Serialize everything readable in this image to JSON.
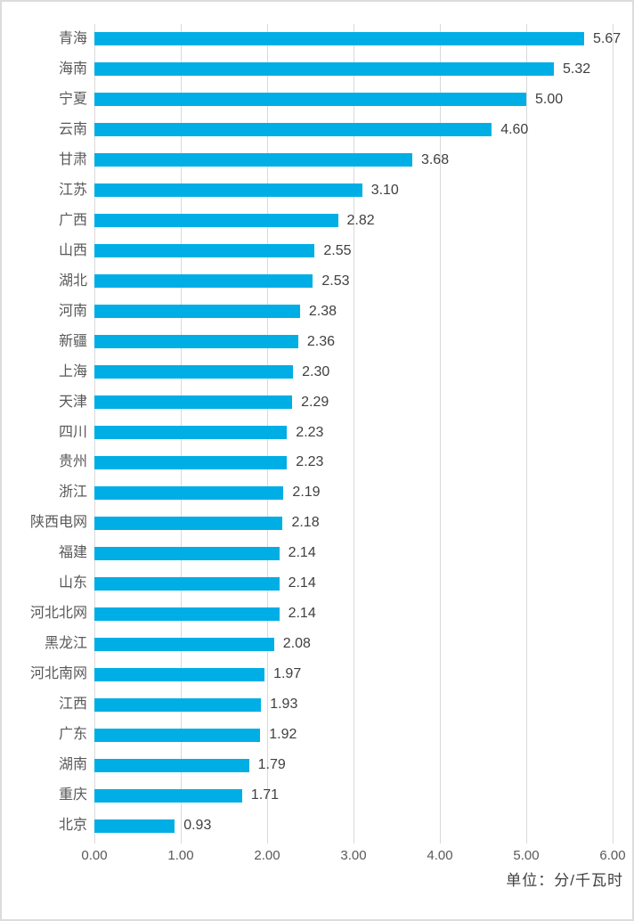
{
  "chart_data": {
    "type": "bar",
    "orientation": "horizontal",
    "title": "",
    "unit_label": "单位：分/千瓦时",
    "categories": [
      "青海",
      "海南",
      "宁夏",
      "云南",
      "甘肃",
      "江苏",
      "广西",
      "山西",
      "湖北",
      "河南",
      "新疆",
      "上海",
      "天津",
      "四川",
      "贵州",
      "浙江",
      "陕西电网",
      "福建",
      "山东",
      "河北北网",
      "黑龙江",
      "河北南网",
      "江西",
      "广东",
      "湖南",
      "重庆",
      "北京"
    ],
    "values": [
      5.67,
      5.32,
      5.0,
      4.6,
      3.68,
      3.1,
      2.82,
      2.55,
      2.53,
      2.38,
      2.36,
      2.3,
      2.29,
      2.23,
      2.23,
      2.19,
      2.18,
      2.14,
      2.14,
      2.14,
      2.08,
      1.97,
      1.93,
      1.92,
      1.79,
      1.71,
      0.93
    ],
    "value_labels": [
      "5.67",
      "5.32",
      "5.00",
      "4.60",
      "3.68",
      "3.10",
      "2.82",
      "2.55",
      "2.53",
      "2.38",
      "2.36",
      "2.30",
      "2.29",
      "2.23",
      "2.23",
      "2.19",
      "2.18",
      "2.14",
      "2.14",
      "2.14",
      "2.08",
      "1.97",
      "1.93",
      "1.92",
      "1.79",
      "1.71",
      "0.93"
    ],
    "x_ticks": [
      "0.00",
      "1.00",
      "2.00",
      "3.00",
      "4.00",
      "5.00",
      "6.00"
    ],
    "xlim": [
      0,
      6
    ],
    "grid": "vertical",
    "legend": "none",
    "colors": {
      "bar": "#00AEE6",
      "gridline": "#D9D9D9",
      "tick_label": "#595959",
      "category_label": "#595959",
      "value_label": "#3F3F3F",
      "unit_label": "#3F3F3F",
      "background": "#FFFFFF",
      "frame_border": "#DCDCDC"
    }
  }
}
